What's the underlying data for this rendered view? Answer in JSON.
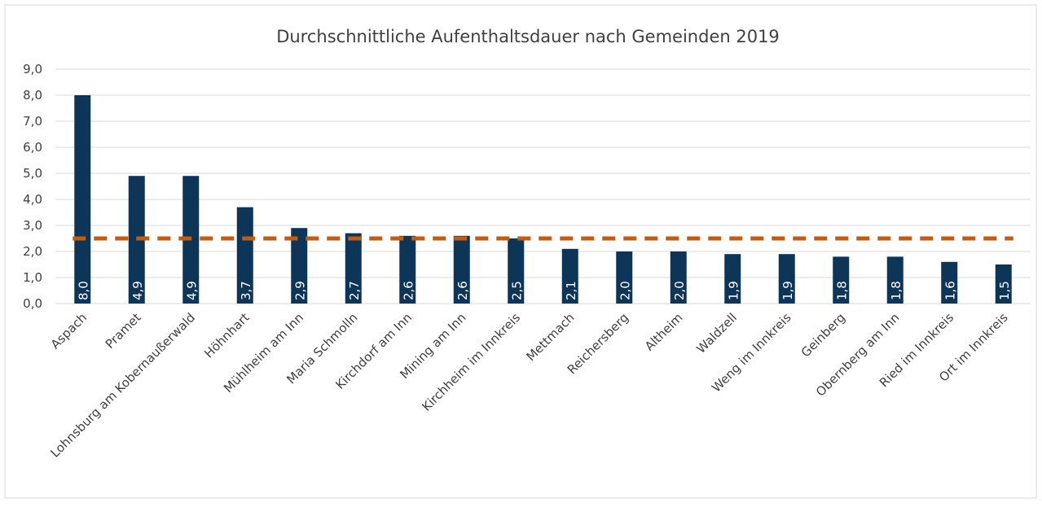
{
  "chart_data": {
    "type": "bar",
    "title": "Durchschnittliche Aufenthaltsdauer nach Gemeinden 2019",
    "categories": [
      "Aspach",
      "Pramet",
      "Lohnsburg am Kobernaußerwald",
      "Höhnhart",
      "Mühlheim am Inn",
      "Maria Schmolln",
      "Kirchdorf am Inn",
      "Mining am Inn",
      "Kirchheim im Innkreis",
      "Mettmach",
      "Reichersberg",
      "Altheim",
      "Waldzell",
      "Weng im Innkreis",
      "Geinberg",
      "Obernberg am Inn",
      "Ried im Innkreis",
      "Ort im Innkreis"
    ],
    "values": [
      8.0,
      4.9,
      4.9,
      3.7,
      2.9,
      2.7,
      2.6,
      2.6,
      2.5,
      2.1,
      2.0,
      2.0,
      1.9,
      1.9,
      1.8,
      1.8,
      1.6,
      1.5
    ],
    "value_labels": [
      "8,0",
      "4,9",
      "4,9",
      "3,7",
      "2,9",
      "2,7",
      "2,6",
      "2,6",
      "2,5",
      "2,1",
      "2,0",
      "2,0",
      "1,9",
      "1,9",
      "1,8",
      "1,8",
      "1,6",
      "1,5"
    ],
    "color": "#0d3558",
    "average": 2.5,
    "average_color": "#c55a11",
    "ylim": [
      0,
      9
    ],
    "yticks": [
      {
        "value": 0,
        "label": "0,0"
      },
      {
        "value": 1,
        "label": "1,0"
      },
      {
        "value": 2,
        "label": "2,0"
      },
      {
        "value": 3,
        "label": "3,0"
      },
      {
        "value": 4,
        "label": "4,0"
      },
      {
        "value": 5,
        "label": "5,0"
      },
      {
        "value": 6,
        "label": "6,0"
      },
      {
        "value": 7,
        "label": "7,0"
      },
      {
        "value": 8,
        "label": "8,0"
      },
      {
        "value": 9,
        "label": "9,0"
      }
    ],
    "grid": true
  }
}
